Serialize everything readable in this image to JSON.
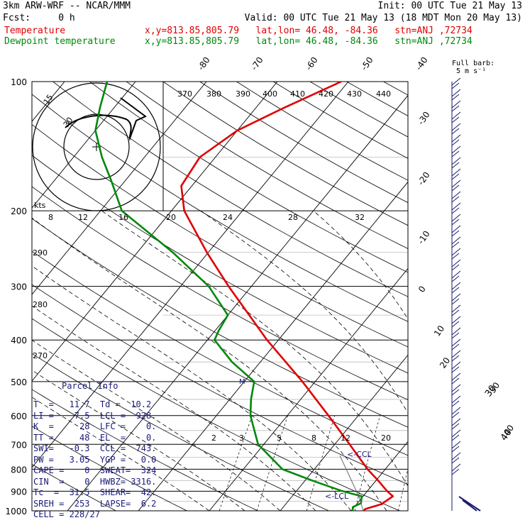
{
  "header": {
    "line1_left": "3km ARW-WRF -- NCAR/MMM",
    "line1_right": "Init: 00 UTC Tue 21 May 13",
    "line2_left": "Fcst:     0 h",
    "line2_right": "Valid: 00 UTC Tue 21 May 13 (18 MDT Mon 20 May 13)",
    "temp_label": "Temperature",
    "temp_loc": "x,y=813.85,805.79   lat,lon= 46.48, -84.36   stn=ANJ ,72734",
    "dew_label": "Dewpoint temperature",
    "dew_loc": "x,y=813.85,805.79   lat,lon= 46.48, -84.36   stn=ANJ ,72734",
    "full_barb_1": "Full barb:",
    "full_barb_2": "5 m s⁻¹"
  },
  "colors": {
    "temperature": "#e00000",
    "dewpoint": "#00880a",
    "wind": "#1a1a6e",
    "text_blue": "#1a1a7a"
  },
  "chart_data": {
    "type": "line",
    "pressure_levels_hpa": [
      "100",
      "200",
      "300",
      "400",
      "500",
      "600",
      "700",
      "800",
      "900",
      "1000"
    ],
    "isotherm_labels_c": [
      "-80",
      "-70",
      "-60",
      "-50",
      "-40",
      "-30",
      "-20",
      "-10",
      "0",
      "10",
      "20",
      "30",
      "40"
    ],
    "theta_labels_k": [
      "370",
      "380",
      "390",
      "400",
      "410",
      "420",
      "430",
      "440",
      "290",
      "280",
      "270"
    ],
    "mixing_ratio_labels": [
      "8",
      "12",
      "16",
      "20",
      "24",
      "28",
      "32",
      "2",
      "3",
      "5",
      "8",
      "12",
      "20"
    ],
    "hodograph": {
      "ring_labels": [
        "15",
        "30"
      ],
      "kts_label": "kts"
    },
    "ccl_label": "<-CCL",
    "lcl_label": "<-LCL",
    "mark_label": "M",
    "wind_numbers": [
      "30",
      "40"
    ],
    "series": [
      {
        "name": "Temperature",
        "points": [
          [
            1000,
            11.7
          ],
          [
            990,
            11.8
          ],
          [
            965,
            13.5
          ],
          [
            925,
            14.2
          ],
          [
            900,
            12.8
          ],
          [
            850,
            10.3
          ],
          [
            800,
            7.5
          ],
          [
            700,
            2.1
          ],
          [
            600,
            -4.2
          ],
          [
            500,
            -11.8
          ],
          [
            400,
            -21.6
          ],
          [
            300,
            -33.2
          ],
          [
            250,
            -40.2
          ],
          [
            200,
            -48.2
          ],
          [
            175,
            -51.5
          ],
          [
            150,
            -52.2
          ],
          [
            130,
            -50.0
          ],
          [
            115,
            -46.0
          ],
          [
            100,
            -41.0
          ]
        ]
      },
      {
        "name": "Dewpoint temperature",
        "points": [
          [
            1000,
            10.2
          ],
          [
            980,
            9.8
          ],
          [
            960,
            10.5
          ],
          [
            925,
            9.8
          ],
          [
            900,
            6.5
          ],
          [
            850,
            1.0
          ],
          [
            800,
            -4.5
          ],
          [
            700,
            -10.8
          ],
          [
            600,
            -15.2
          ],
          [
            550,
            -17.0
          ],
          [
            500,
            -18.6
          ],
          [
            450,
            -24.0
          ],
          [
            400,
            -29.0
          ],
          [
            380,
            -29.5
          ],
          [
            350,
            -30.0
          ],
          [
            300,
            -36.0
          ],
          [
            250,
            -45.0
          ],
          [
            200,
            -57.0
          ],
          [
            170,
            -62.0
          ],
          [
            150,
            -66.0
          ],
          [
            130,
            -70.0
          ],
          [
            115,
            -72.0
          ],
          [
            100,
            -74.0
          ]
        ]
      }
    ]
  },
  "parcel": {
    "title": "Parcel Info",
    "rows": [
      "T  =   11.7  Td =  10.2",
      "LI =    7.5  LCL =  928.",
      "K  =     28  LFC =    0.",
      "TT =     48  EL  =    0.",
      "SWI=   -0.3  CCL =  743.",
      "PW =   3.05  YGP =   0.0",
      "CAPE =    0  SWEAT=  324",
      "CIN  =    0  HWBZ= 3316.",
      "Tc  =  31.5  SHEAR=  42.",
      "SREH =  253  LAPSE=  6.2",
      "CELL = 228/27"
    ]
  }
}
